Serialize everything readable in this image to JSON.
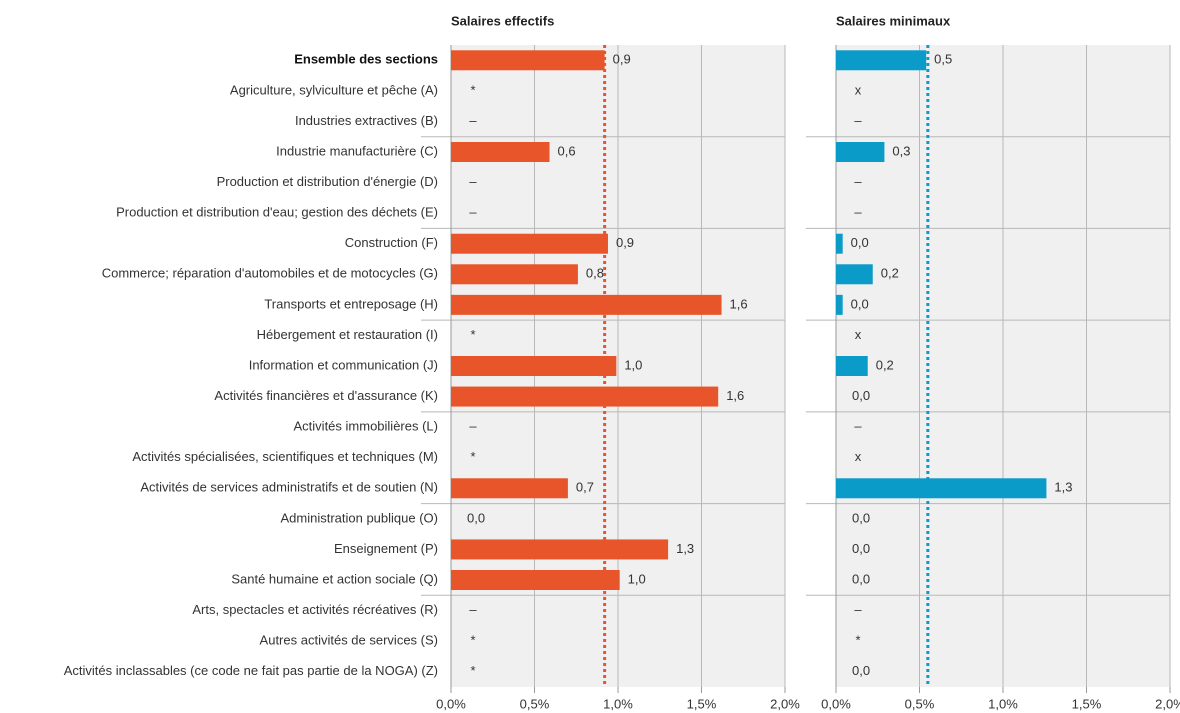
{
  "chart_data": [
    {
      "type": "bar",
      "orientation": "horizontal",
      "title": "Salaires effectifs",
      "categories": [
        "Ensemble des sections",
        "Agriculture, sylviculture et pêche (A)",
        "Industries extractives (B)",
        "Industrie manufacturière (C)",
        "Production et distribution d'énergie (D)",
        "Production et distribution d'eau; gestion des déchets (E)",
        "Construction (F)",
        "Commerce; réparation d'automobiles et de motocycles (G)",
        "Transports et entreposage (H)",
        "Hébergement et restauration (I)",
        "Information et communication (J)",
        "Activités financières et d'assurance (K)",
        "Activités immobilières (L)",
        "Activités spécialisées, scientifiques et techniques (M)",
        "Activités de services administratifs et de soutien (N)",
        "Administration publique (O)",
        "Enseignement (P)",
        "Santé humaine et action sociale (Q)",
        "Arts, spectacles et activités récréatives (R)",
        "Autres activités de services (S)",
        "Activités inclassables (ce code ne fait pas partie de la NOGA) (Z)"
      ],
      "values": [
        0.92,
        null,
        null,
        0.59,
        null,
        null,
        0.94,
        0.76,
        1.62,
        null,
        0.99,
        1.6,
        null,
        null,
        0.7,
        0,
        1.3,
        1.01,
        null,
        null,
        null
      ],
      "value_labels": [
        "0,9",
        "*",
        "–",
        "0,6",
        "–",
        "–",
        "0,9",
        "0,8",
        "1,6",
        "*",
        "1,0",
        "1,6",
        "–",
        "*",
        "0,7",
        "0,0",
        "1,3",
        "1,0",
        "–",
        "*",
        "*"
      ],
      "color": "#e8552a",
      "reference": 0.92,
      "xlim": [
        0,
        2
      ],
      "xticks": [
        {
          "value": 0,
          "label": "0,0%"
        },
        {
          "value": 0.5,
          "label": "0,5%"
        },
        {
          "value": 1,
          "label": "1,0%"
        },
        {
          "value": 1.5,
          "label": "1,5%"
        },
        {
          "value": 2,
          "label": "2,0%"
        }
      ],
      "grid": true
    },
    {
      "type": "bar",
      "orientation": "horizontal",
      "title": "Salaires minimaux",
      "values": [
        0.54,
        null,
        null,
        0.29,
        null,
        null,
        0.04,
        0.22,
        0.04,
        null,
        0.19,
        0,
        null,
        null,
        1.26,
        0,
        0,
        0,
        null,
        null,
        0
      ],
      "value_labels": [
        "0,5",
        "x",
        "–",
        "0,3",
        "–",
        "–",
        "0,0",
        "0,2",
        "0,0",
        "x",
        "0,2",
        "0,0",
        "–",
        "x",
        "1,3",
        "0,0",
        "0,0",
        "0,0",
        "–",
        "*",
        "0,0"
      ],
      "color": "#0b9bc9",
      "reference": 0.55,
      "xlim": [
        0,
        2
      ],
      "xticks": [
        {
          "value": 0,
          "label": "0,0%"
        },
        {
          "value": 0.5,
          "label": "0,5%"
        },
        {
          "value": 1,
          "label": "1,0%"
        },
        {
          "value": 1.5,
          "label": "1,5%"
        },
        {
          "value": 2,
          "label": "2,0%"
        }
      ],
      "grid": true
    }
  ]
}
